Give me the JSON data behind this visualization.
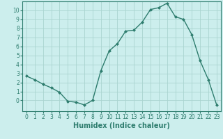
{
  "x": [
    0,
    1,
    2,
    3,
    4,
    5,
    6,
    7,
    8,
    9,
    10,
    11,
    12,
    13,
    14,
    15,
    16,
    17,
    18,
    19,
    20,
    21,
    22,
    23
  ],
  "y": [
    2.7,
    2.3,
    1.8,
    1.4,
    0.9,
    -0.1,
    -0.2,
    -0.5,
    0.0,
    3.3,
    5.5,
    6.3,
    7.7,
    7.8,
    8.7,
    10.1,
    10.3,
    10.8,
    9.3,
    9.0,
    7.3,
    4.4,
    2.3,
    -0.5
  ],
  "line_color": "#2e7d6e",
  "marker": "D",
  "marker_size": 2.0,
  "bg_color": "#cceeed",
  "grid_color": "#aad4d0",
  "xlabel": "Humidex (Indice chaleur)",
  "xlim": [
    -0.5,
    23.5
  ],
  "ylim": [
    -1.2,
    11
  ],
  "yticks": [
    0,
    1,
    2,
    3,
    4,
    5,
    6,
    7,
    8,
    9,
    10
  ],
  "xticks": [
    0,
    1,
    2,
    3,
    4,
    5,
    6,
    7,
    8,
    9,
    10,
    11,
    12,
    13,
    14,
    15,
    16,
    17,
    18,
    19,
    20,
    21,
    22,
    23
  ],
  "tick_label_fontsize": 5.5,
  "xlabel_fontsize": 7.0,
  "line_width": 1.0
}
